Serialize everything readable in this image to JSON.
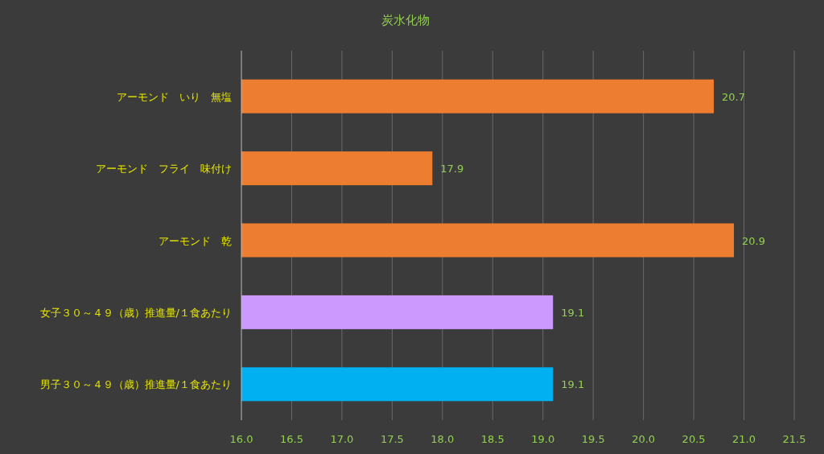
{
  "chart_data": {
    "type": "bar",
    "orientation": "horizontal",
    "title": "炭水化物",
    "categories": [
      "アーモンド　いり　無塩",
      "アーモンド　フライ　味付け",
      "アーモンド　乾",
      "女子３０～４９（歳）推進量/１食あたり",
      "男子３０～４９（歳）推進量/１食あたり"
    ],
    "values": [
      20.7,
      17.9,
      20.9,
      19.1,
      19.1
    ],
    "colors": [
      "#ed7d31",
      "#ed7d31",
      "#ed7d31",
      "#cc99ff",
      "#00b0f0"
    ],
    "xlim": [
      16,
      21.5
    ],
    "xticks": [
      {
        "value": 16,
        "label": "16.0"
      },
      {
        "value": 16.5,
        "label": "16.5"
      },
      {
        "value": 17,
        "label": "17.0"
      },
      {
        "value": 17.5,
        "label": "17.5"
      },
      {
        "value": 18,
        "label": "18.0"
      },
      {
        "value": 18.5,
        "label": "18.5"
      },
      {
        "value": 19,
        "label": "19.0"
      },
      {
        "value": 19.5,
        "label": "19.5"
      },
      {
        "value": 20,
        "label": "20.0"
      },
      {
        "value": 20.5,
        "label": "20.5"
      },
      {
        "value": 21,
        "label": "21.0"
      },
      {
        "value": 21.5,
        "label": "21.5"
      }
    ],
    "grid": "x",
    "data_labels": true
  }
}
